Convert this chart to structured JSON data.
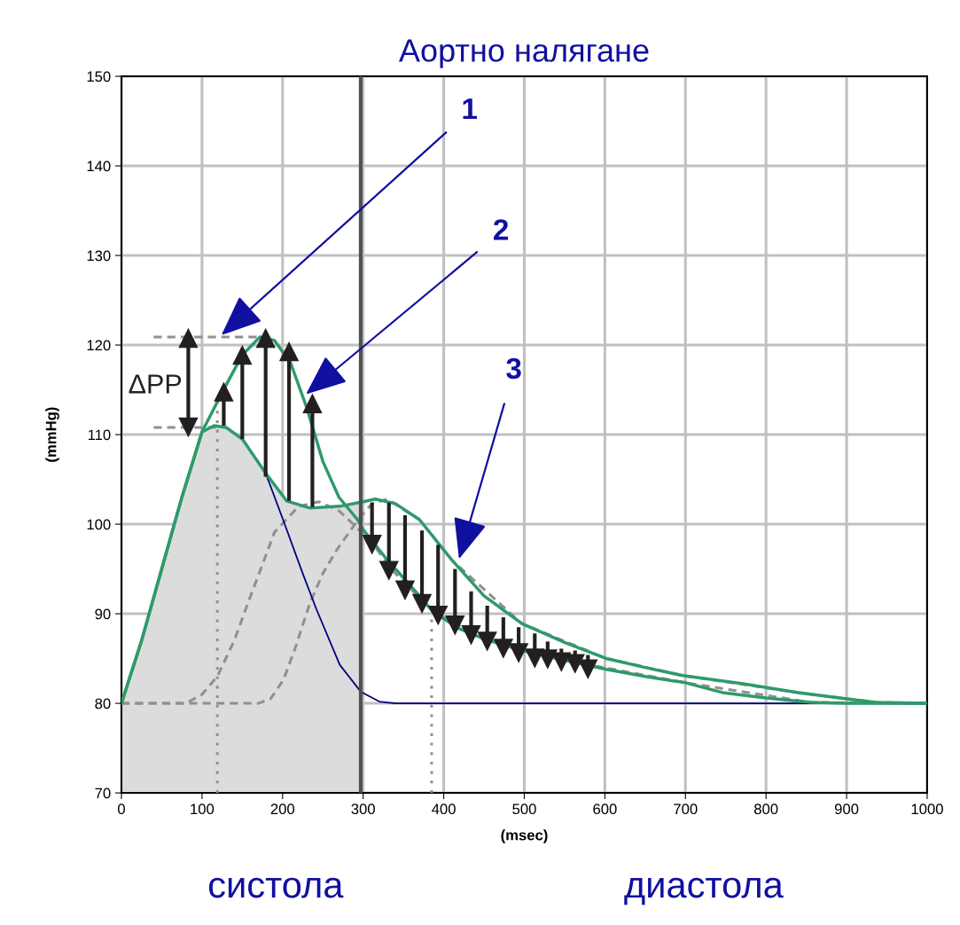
{
  "chart_data": {
    "type": "line",
    "title": "Аортно налягане",
    "xlabel": "(msec)",
    "ylabel": "(mmHg)",
    "xlim": [
      0,
      1000
    ],
    "ylim": [
      70,
      150
    ],
    "xticks": [
      0,
      100,
      200,
      300,
      400,
      500,
      600,
      700,
      800,
      900,
      1000
    ],
    "yticks": [
      70,
      80,
      90,
      100,
      110,
      120,
      130,
      140,
      150
    ],
    "grid": true,
    "marker": "none",
    "series": [
      {
        "type": "area",
        "color": "#dcdcdc",
        "x": [
          0,
          25,
          50,
          75,
          100,
          115,
          130,
          150,
          179,
          205,
          234,
          271,
          297
        ],
        "values": [
          80,
          87,
          95,
          103,
          110.3,
          111,
          110.8,
          109.5,
          105.7,
          102.6,
          101.8,
          102,
          102.4
        ]
      },
      {
        "type": "line",
        "color": "#909090",
        "line_style": "dotted",
        "x": [
          119,
          119
        ],
        "values": [
          70,
          114
        ]
      },
      {
        "type": "line",
        "color": "#909090",
        "line_style": "dotted",
        "x": [
          385,
          385
        ],
        "values": [
          70,
          90.2
        ]
      },
      {
        "type": "line",
        "color": "#909090",
        "line_style": "dashed",
        "x": [
          40,
          172
        ],
        "values": [
          120.9,
          120.9
        ]
      },
      {
        "type": "line",
        "color": "#909090",
        "line_style": "dashed",
        "x": [
          40,
          119
        ],
        "values": [
          110.8,
          110.8
        ]
      },
      {
        "type": "line",
        "color": "#909090",
        "line_style": "dashed",
        "x": [
          0,
          80,
          100,
          119,
          140,
          157,
          175,
          190,
          220,
          245,
          270,
          290,
          310,
          340,
          387,
          450,
          550,
          700,
          856,
          1000
        ],
        "values": [
          80,
          80,
          81,
          83,
          87,
          91.2,
          95.5,
          99.1,
          102,
          102.5,
          101.5,
          99.8,
          98,
          94.5,
          90.2,
          87.2,
          84.8,
          82.3,
          80.1,
          80
        ]
      },
      {
        "type": "line",
        "color": "#909090",
        "line_style": "dashed",
        "x": [
          0,
          170,
          185,
          201,
          215,
          234,
          250,
          267,
          293,
          311,
          330,
          370,
          410,
          497,
          602,
          697,
          840,
          937,
          1000
        ],
        "values": [
          80,
          80,
          80.5,
          82.6,
          86,
          91.2,
          94.5,
          97.1,
          100.4,
          102.3,
          102.8,
          100.5,
          96,
          88.9,
          85,
          83.1,
          81.2,
          80.1,
          80
        ]
      },
      {
        "color": "#000080",
        "line_style": "solid",
        "x": [
          179,
          201,
          225,
          242,
          271,
          297,
          320,
          340,
          1000
        ],
        "values": [
          105.7,
          100.4,
          94.5,
          90.5,
          84.3,
          81.3,
          80.2,
          80,
          80
        ]
      },
      {
        "color": "#2e9a6a",
        "line_style": "solid",
        "x": [
          0,
          25,
          50,
          75,
          100,
          125,
          150,
          172,
          190,
          210,
          230,
          250,
          270,
          293,
          300,
          330,
          360,
          387,
          420,
          450,
          497,
          550,
          602,
          650,
          700,
          746,
          800,
          856,
          900,
          1000
        ],
        "values": [
          80,
          87,
          95,
          103,
          110.3,
          114.7,
          118.9,
          120.9,
          120.5,
          118,
          113,
          107,
          103,
          100.5,
          99.4,
          96,
          93,
          90.2,
          88.3,
          87.2,
          85.9,
          84.8,
          83.8,
          83,
          82.3,
          81.2,
          80.6,
          80.1,
          80,
          80
        ]
      },
      {
        "color": "#2e9a6a",
        "line_style": "solid",
        "x": [
          0,
          25,
          50,
          75,
          100,
          115,
          130,
          150,
          179,
          205,
          234,
          271,
          300,
          315,
          340,
          370,
          410,
          450,
          497,
          550,
          602,
          650,
          697,
          770,
          840,
          900,
          937,
          1000
        ],
        "values": [
          80,
          87,
          95,
          103,
          110.3,
          111,
          110.8,
          109.5,
          105.7,
          102.6,
          101.8,
          102,
          102.5,
          102.8,
          102.3,
          100.5,
          96,
          92,
          88.9,
          86.8,
          85,
          84,
          83.1,
          82.2,
          81.2,
          80.5,
          80.1,
          80
        ]
      },
      {
        "type": "scatter",
        "color": "#231f20",
        "marker": "triangle",
        "x": [
          127,
          150,
          179,
          208,
          237,
          83
        ],
        "values": [
          114.8,
          118.9,
          120.8,
          119.3,
          113.5,
          120.8
        ],
        "errors": [
          [
            111.0,
            114.8
          ],
          [
            109.5,
            118.9
          ],
          [
            105.3,
            120.8
          ],
          [
            102.6,
            119.3
          ],
          [
            101.9,
            113.5
          ],
          null
        ]
      },
      {
        "type": "line",
        "color": "#231f20",
        "line_style": "solid",
        "x": [
          83,
          83
        ],
        "values": [
          110.8,
          120.8
        ]
      },
      {
        "type": "scatter",
        "color": "#231f20",
        "marker": "triangle_down",
        "x": [
          83
        ],
        "values": [
          110.8
        ]
      },
      {
        "type": "scatter",
        "color": "#231f20",
        "marker": "triangle_down",
        "x": [
          311,
          332,
          352,
          373,
          393,
          414,
          434,
          454,
          474,
          493,
          513,
          529,
          546,
          563,
          579
        ],
        "values": [
          97.7,
          94.8,
          92.6,
          91.1,
          89.8,
          88.7,
          87.6,
          86.9,
          86.1,
          85.6,
          85.0,
          84.9,
          84.6,
          84.4,
          83.8
        ],
        "errors": [
          [
            97.7,
            102.4
          ],
          [
            94.8,
            102.4
          ],
          [
            92.6,
            101.0
          ],
          [
            91.1,
            99.3
          ],
          [
            89.8,
            97.7
          ],
          [
            88.7,
            95.0
          ],
          [
            87.6,
            92.5
          ],
          [
            86.9,
            90.9
          ],
          [
            86.1,
            89.6
          ],
          [
            85.6,
            88.5
          ],
          [
            85.0,
            87.8
          ],
          [
            84.9,
            86.9
          ],
          [
            84.6,
            86.1
          ],
          [
            84.4,
            85.9
          ],
          [
            83.8,
            85.4
          ]
        ]
      }
    ],
    "ref_lines": [
      {
        "axis": "x",
        "value": 297,
        "color": "#505050",
        "line_style": "solid"
      }
    ],
    "annotations": [
      {
        "text": "1",
        "x": 124,
        "y": 121.1
      },
      {
        "text": "2",
        "x": 229,
        "y": 114.5
      },
      {
        "text": "3",
        "x": 419,
        "y": 96.1
      },
      "ΔPP",
      "систола",
      "диастола"
    ]
  }
}
